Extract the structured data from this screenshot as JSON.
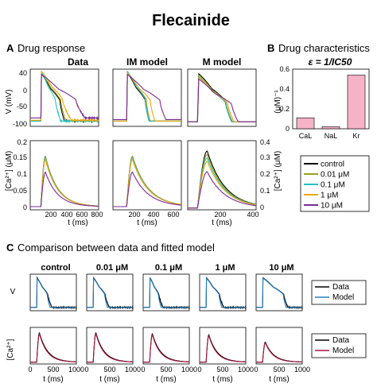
{
  "title": "Flecainide",
  "panelA": {
    "letter": "A",
    "title": "Drug response",
    "col_titles": [
      "Data",
      "IM model",
      "M model"
    ],
    "v_yticks": [
      "40",
      "0",
      "-50",
      "-100"
    ],
    "v_ylabel": "V (mV)",
    "ca_yticks": [
      "0.2",
      "0.15",
      "0.1",
      "0.05",
      "0"
    ],
    "ca_ylabel": "[Ca²⁺] (μM)",
    "ca_right_yticks": [
      "0.4",
      "0.3",
      "0.2",
      "0.1",
      "0"
    ],
    "ca_right_ylabel": "[Ca²⁺] (μM)",
    "xticks_data": [
      "200",
      "400",
      "600",
      "800"
    ],
    "xticks_model": [
      "200",
      "400",
      "600"
    ],
    "xticks_m": [
      "200",
      "400"
    ],
    "xlabel": "t (ms)"
  },
  "panelB": {
    "letter": "B",
    "title": "Drug characteristics",
    "formula": "ε = 1/IC50",
    "ylabel": "(μM)⁻¹",
    "yticks": [
      "0.6",
      "0.4",
      "0.2",
      "0"
    ],
    "legend_entries": [
      "control",
      "0.01 μM",
      "0.1 μM",
      "1 μM",
      "10 μM"
    ]
  },
  "panelC": {
    "letter": "C",
    "title": "Comparison between data and fitted model",
    "col_titles": [
      "control",
      "0.01 μM",
      "0.1 μM",
      "1 μM",
      "10 μM"
    ],
    "row_labels": [
      "V",
      "[Ca²⁺]"
    ],
    "legend_entries": [
      "Data",
      "Model"
    ],
    "xticks": [
      "0",
      "500",
      "1000"
    ],
    "xlabel": "t (ms)"
  },
  "colors": {
    "control": "#000000",
    "c001": "#9aa01e",
    "c01": "#22c4c0",
    "c1": "#f2a40a",
    "c10": "#7a2a98",
    "bar_fill": "#f6b2c6",
    "model_v": "#1f7fbf",
    "model_ca": "#a5163c"
  },
  "chart_data": [
    {
      "type": "bar",
      "categories": [
        "CaL",
        "NaL",
        "Kr"
      ],
      "values": [
        0.11,
        0.02,
        0.54
      ],
      "ylabel": "(μM)⁻¹",
      "ylim": [
        0,
        0.6
      ]
    },
    {
      "type": "line",
      "panel": "A-data-V",
      "series": [
        {
          "name": "control",
          "x": [
            0,
            140,
            170,
            200,
            250,
            300,
            350,
            400,
            430,
            450,
            500,
            600,
            800
          ],
          "y": [
            -88,
            -85,
            38,
            28,
            15,
            0,
            -20,
            -50,
            -82,
            -85,
            -86,
            -86,
            -86
          ]
        },
        {
          "name": "10 μM",
          "x": [
            0,
            140,
            170,
            200,
            300,
            400,
            500,
            600,
            650,
            700,
            750,
            800
          ],
          "y": [
            -86,
            -84,
            36,
            32,
            22,
            5,
            -15,
            -40,
            -70,
            -78,
            -78,
            -78
          ]
        }
      ]
    }
  ]
}
